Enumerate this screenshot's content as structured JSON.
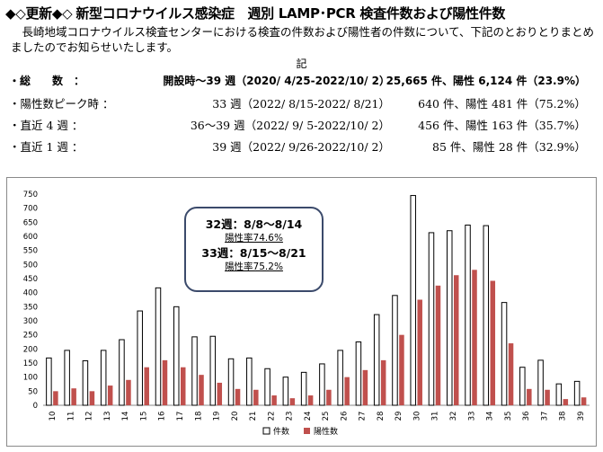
{
  "header": {
    "marker": "◆◇更新◆◇",
    "title": "新型コロナウイルス感染症　週別 LAMP･PCR 検査件数および陽性件数"
  },
  "intro": "長崎地域コロナウイルス検査センターにおける検査の件数および陽性者の件数について、下記のとおりとりまとめましたのでお知らせいたします。",
  "ki": "記",
  "stats": [
    {
      "label": "・総　　数　：",
      "period": "開設時～39 週（2020/ 4/25-2022/10/ 2）",
      "result": "25,665 件、陽性 6,124 件（23.9%）"
    },
    {
      "label": "・陽性数ピーク時 ：",
      "period": "33 週（2022/ 8/15-2022/ 8/21）",
      "result": "640 件、陽性 481 件（75.2%）"
    },
    {
      "label": "・直近 4 週 ：",
      "period": "36～39 週（2022/ 9/ 5-2022/10/ 2）",
      "result": "456 件、陽性 163 件（35.7%）"
    },
    {
      "label": "・直近 1 週 ：",
      "period": "39 週（2022/ 9/26-2022/10/ 2）",
      "result": "85 件、陽性 28 件（32.9%）"
    }
  ],
  "callout": {
    "week32": "32週：8/8～8/14",
    "rate32": "陽性率74.6%",
    "week33": "33週：8/15～8/21",
    "rate33": "陽性率75.2%"
  },
  "chart_data": {
    "type": "bar",
    "categories": [
      "10",
      "11",
      "12",
      "13",
      "14",
      "15",
      "16",
      "17",
      "18",
      "19",
      "20",
      "21",
      "22",
      "23",
      "24",
      "25",
      "26",
      "27",
      "28",
      "29",
      "30",
      "31",
      "32",
      "33",
      "34",
      "35",
      "36",
      "37",
      "38",
      "39"
    ],
    "series": [
      {
        "name": "件数",
        "color": "#ffffff",
        "stroke": "#000000",
        "values": [
          168,
          195,
          158,
          195,
          233,
          335,
          417,
          350,
          243,
          245,
          165,
          168,
          130,
          100,
          117,
          147,
          195,
          225,
          322,
          390,
          745,
          613,
          620,
          640,
          638,
          365,
          135,
          160,
          76,
          85
        ]
      },
      {
        "name": "陽性数",
        "color": "#c0504d",
        "values": [
          50,
          60,
          50,
          70,
          90,
          135,
          160,
          135,
          108,
          80,
          58,
          55,
          35,
          25,
          35,
          55,
          100,
          125,
          160,
          250,
          375,
          425,
          462,
          481,
          442,
          220,
          58,
          55,
          22,
          28
        ]
      }
    ],
    "ylim": [
      0,
      750
    ],
    "yticks": [
      0,
      50,
      100,
      150,
      200,
      250,
      300,
      350,
      400,
      450,
      500,
      550,
      600,
      650,
      700,
      750
    ],
    "grid": false,
    "legend": "bottom-center"
  }
}
